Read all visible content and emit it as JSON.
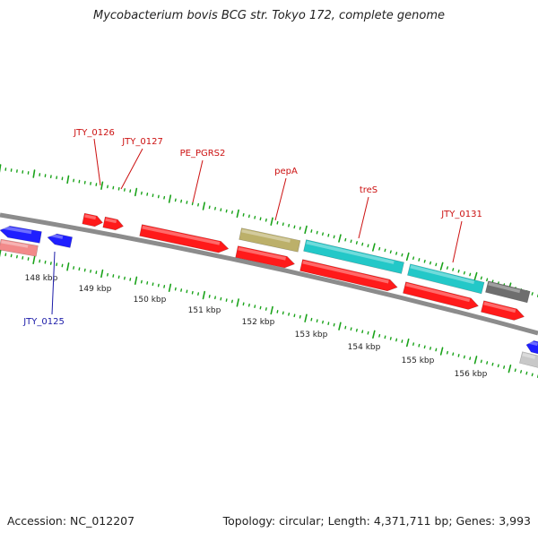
{
  "title": "Mycobacterium bovis BCG str. Tokyo 172, complete genome",
  "accession": "Accession: NC_012207",
  "summary": "Topology: circular; Length: 4,371,711 bp; Genes: 3,993",
  "colors": {
    "cds_forward": "#ff1a1a",
    "cds_reverse": "#1f1fff",
    "rna": "#23c8c8",
    "other": "#bcb06a",
    "pseudo": "#6e6e6e",
    "light": "#f28a8a",
    "tick": "#1aa31a",
    "backbone": "#8c8c8c",
    "label_red": "#cc1111",
    "label_blue": "#1a1aa8"
  },
  "scale_labels": [
    "148 kbp",
    "149 kbp",
    "150 kbp",
    "151 kbp",
    "152 kbp",
    "153 kbp",
    "154 kbp",
    "155 kbp",
    "156 kbp"
  ],
  "gene_labels": [
    {
      "id": "jty-0126",
      "text": "JTY_0126",
      "color": "label_red"
    },
    {
      "id": "jty-0127",
      "text": "JTY_0127",
      "color": "label_red"
    },
    {
      "id": "pe-pgrs2",
      "text": "PE_PGRS2",
      "color": "label_red"
    },
    {
      "id": "pepa",
      "text": "pepA",
      "color": "label_red"
    },
    {
      "id": "tres",
      "text": "treS",
      "color": "label_red"
    },
    {
      "id": "jty-0131",
      "text": "JTY_0131",
      "color": "label_red"
    },
    {
      "id": "jty-0125",
      "text": "JTY_0125",
      "color": "label_blue"
    }
  ]
}
